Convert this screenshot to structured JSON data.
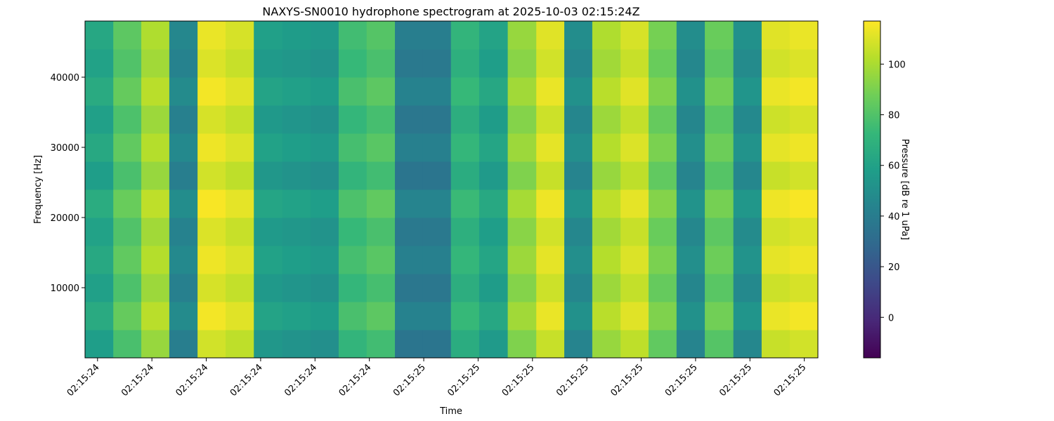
{
  "chart_data": {
    "type": "heatmap",
    "title": "NAXYS-SN0010 hydrophone spectrogram at 2025-10-03 02:15:24Z",
    "xlabel": "Time",
    "ylabel": "Frequency [Hz]",
    "colorbar_label": "Pressure [dB re 1 uPa]",
    "colormap": "viridis",
    "x": [
      24.403,
      24.455,
      24.506,
      24.558,
      24.61,
      24.661,
      24.714,
      24.766,
      24.818,
      24.869,
      24.921,
      24.973,
      25.024,
      25.076,
      25.128,
      25.181,
      25.233,
      25.284,
      25.336,
      25.388,
      25.439,
      25.491,
      25.543,
      25.596,
      25.647,
      25.699
    ],
    "y": [
      2000,
      6000,
      10000,
      14000,
      18000,
      22000,
      26000,
      30000,
      34000,
      38000,
      42000,
      46000
    ],
    "z": [
      [
        58,
        78,
        96,
        41,
        108,
        104,
        54,
        52,
        50,
        71,
        76,
        36,
        36,
        66,
        56,
        91,
        106,
        44,
        96,
        104,
        84,
        44,
        81,
        46,
        106,
        108
      ],
      [
        65,
        85,
        103,
        48,
        115,
        111,
        61,
        59,
        57,
        78,
        83,
        43,
        43,
        73,
        63,
        98,
        113,
        51,
        103,
        111,
        91,
        51,
        88,
        53,
        113,
        115
      ],
      [
        59,
        79,
        97,
        42,
        109,
        105,
        55,
        53,
        51,
        72,
        77,
        37,
        37,
        67,
        57,
        92,
        107,
        45,
        97,
        105,
        85,
        45,
        82,
        47,
        107,
        109
      ],
      [
        64,
        84,
        102,
        47,
        114,
        110,
        60,
        58,
        56,
        77,
        82,
        42,
        42,
        72,
        62,
        97,
        112,
        50,
        102,
        110,
        90,
        50,
        87,
        52,
        112,
        114
      ],
      [
        60,
        80,
        98,
        43,
        110,
        106,
        56,
        54,
        52,
        73,
        78,
        38,
        38,
        68,
        58,
        93,
        108,
        46,
        98,
        106,
        86,
        46,
        83,
        48,
        108,
        110
      ],
      [
        66,
        86,
        104,
        49,
        116,
        112,
        62,
        60,
        58,
        79,
        84,
        44,
        44,
        74,
        64,
        99,
        114,
        52,
        104,
        112,
        92,
        52,
        89,
        54,
        114,
        116
      ],
      [
        58,
        78,
        96,
        41,
        108,
        104,
        54,
        52,
        50,
        71,
        76,
        36,
        36,
        66,
        56,
        91,
        106,
        44,
        96,
        104,
        84,
        44,
        81,
        46,
        106,
        108
      ],
      [
        64,
        84,
        102,
        47,
        114,
        110,
        60,
        58,
        56,
        77,
        82,
        42,
        42,
        72,
        62,
        97,
        112,
        50,
        102,
        110,
        90,
        50,
        87,
        52,
        112,
        114
      ],
      [
        59,
        79,
        97,
        42,
        109,
        105,
        55,
        53,
        51,
        72,
        77,
        37,
        37,
        67,
        57,
        92,
        107,
        45,
        97,
        105,
        85,
        45,
        82,
        47,
        107,
        109
      ],
      [
        65,
        85,
        103,
        48,
        115,
        111,
        61,
        59,
        57,
        78,
        83,
        43,
        43,
        73,
        63,
        98,
        113,
        51,
        103,
        111,
        91,
        51,
        88,
        53,
        113,
        115
      ],
      [
        60,
        80,
        98,
        43,
        110,
        106,
        56,
        54,
        52,
        73,
        78,
        38,
        38,
        68,
        58,
        93,
        108,
        46,
        98,
        106,
        86,
        46,
        83,
        48,
        108,
        110
      ],
      [
        63,
        83,
        101,
        46,
        113,
        109,
        59,
        57,
        55,
        76,
        81,
        41,
        41,
        71,
        61,
        96,
        111,
        49,
        101,
        109,
        89,
        49,
        86,
        51,
        111,
        113
      ]
    ],
    "xlim": [
      24.377,
      25.725
    ],
    "xticks": [
      {
        "value": 24.4,
        "label": "02:15:24"
      },
      {
        "value": 24.5,
        "label": "02:15:24"
      },
      {
        "value": 24.6,
        "label": "02:15:24"
      },
      {
        "value": 24.7,
        "label": "02:15:24"
      },
      {
        "value": 24.8,
        "label": "02:15:24"
      },
      {
        "value": 24.9,
        "label": "02:15:24"
      },
      {
        "value": 25.0,
        "label": "02:15:25"
      },
      {
        "value": 25.1,
        "label": "02:15:25"
      },
      {
        "value": 25.2,
        "label": "02:15:25"
      },
      {
        "value": 25.3,
        "label": "02:15:25"
      },
      {
        "value": 25.4,
        "label": "02:15:25"
      },
      {
        "value": 25.5,
        "label": "02:15:25"
      },
      {
        "value": 25.6,
        "label": "02:15:25"
      },
      {
        "value": 25.7,
        "label": "02:15:25"
      }
    ],
    "ylim": [
      0,
      48000
    ],
    "yticks": [
      10000,
      20000,
      30000,
      40000
    ],
    "clim": [
      -16,
      117
    ],
    "cticks": [
      0,
      20,
      40,
      60,
      80,
      100
    ]
  }
}
